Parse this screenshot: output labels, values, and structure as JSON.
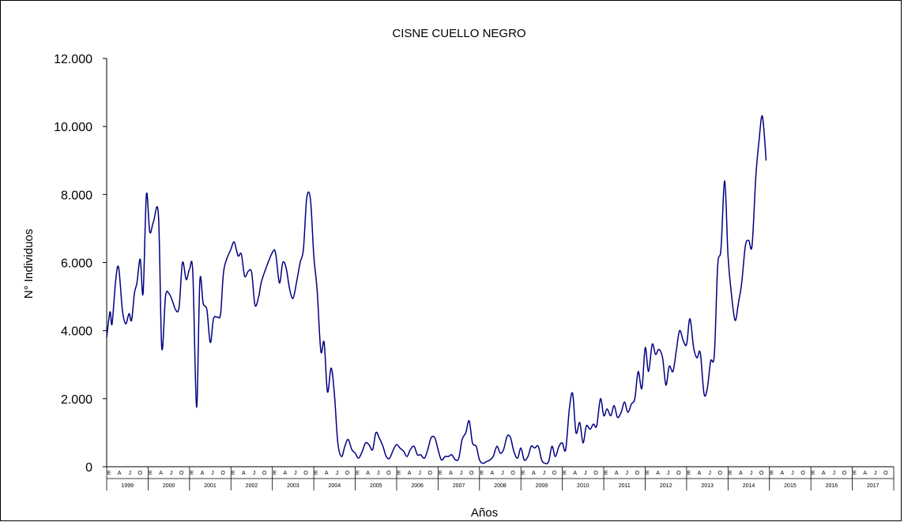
{
  "chart_data": {
    "type": "line",
    "title": "CISNE CUELLO NEGRO",
    "xlabel": "Años",
    "ylabel": "N° Individuos",
    "ylim": [
      0,
      12000
    ],
    "yticks": [
      0,
      2000,
      4000,
      6000,
      8000,
      10000,
      12000
    ],
    "ytick_labels": [
      "0",
      "2.000",
      "4.000",
      "6.000",
      "8.000",
      "10.000",
      "12.000"
    ],
    "month_tick_labels": [
      "E",
      "A",
      "J",
      "O"
    ],
    "years": [
      "1999",
      "2000",
      "2001",
      "2002",
      "2003",
      "2004",
      "2005",
      "2006",
      "2007",
      "2008",
      "2009",
      "2010",
      "2011",
      "2012",
      "2013",
      "2014",
      "2015",
      "2016",
      "2017"
    ],
    "line_color": "#000080",
    "grid": false,
    "series": [
      {
        "x_unit": "years since Jan 1999",
        "points": [
          [
            0.0,
            3800
          ],
          [
            0.08,
            4550
          ],
          [
            0.13,
            4200
          ],
          [
            0.22,
            5500
          ],
          [
            0.29,
            5850
          ],
          [
            0.38,
            4600
          ],
          [
            0.46,
            4200
          ],
          [
            0.54,
            4500
          ],
          [
            0.6,
            4300
          ],
          [
            0.67,
            5100
          ],
          [
            0.73,
            5400
          ],
          [
            0.81,
            6100
          ],
          [
            0.88,
            5100
          ],
          [
            0.96,
            8000
          ],
          [
            1.04,
            6900
          ],
          [
            1.13,
            7200
          ],
          [
            1.25,
            7400
          ],
          [
            1.33,
            3500
          ],
          [
            1.42,
            5000
          ],
          [
            1.5,
            5100
          ],
          [
            1.58,
            4900
          ],
          [
            1.67,
            4600
          ],
          [
            1.75,
            4700
          ],
          [
            1.83,
            6000
          ],
          [
            1.92,
            5500
          ],
          [
            2.0,
            5800
          ],
          [
            2.08,
            5700
          ],
          [
            2.17,
            1750
          ],
          [
            2.25,
            5450
          ],
          [
            2.33,
            4800
          ],
          [
            2.42,
            4600
          ],
          [
            2.5,
            3650
          ],
          [
            2.58,
            4350
          ],
          [
            2.67,
            4400
          ],
          [
            2.75,
            4500
          ],
          [
            2.83,
            5800
          ],
          [
            3.0,
            6400
          ],
          [
            3.08,
            6600
          ],
          [
            3.17,
            6200
          ],
          [
            3.25,
            6250
          ],
          [
            3.33,
            5600
          ],
          [
            3.42,
            5750
          ],
          [
            3.5,
            5700
          ],
          [
            3.58,
            4750
          ],
          [
            3.67,
            5000
          ],
          [
            3.75,
            5500
          ],
          [
            4.0,
            6300
          ],
          [
            4.08,
            6250
          ],
          [
            4.17,
            5400
          ],
          [
            4.25,
            6000
          ],
          [
            4.33,
            5850
          ],
          [
            4.42,
            5200
          ],
          [
            4.5,
            4950
          ],
          [
            4.58,
            5400
          ],
          [
            4.67,
            6000
          ],
          [
            4.75,
            6400
          ],
          [
            4.83,
            7900
          ],
          [
            4.92,
            7850
          ],
          [
            5.0,
            6200
          ],
          [
            5.08,
            5200
          ],
          [
            5.17,
            3400
          ],
          [
            5.25,
            3650
          ],
          [
            5.33,
            2200
          ],
          [
            5.42,
            2900
          ],
          [
            5.5,
            2100
          ],
          [
            5.58,
            700
          ],
          [
            5.67,
            300
          ],
          [
            5.75,
            600
          ],
          [
            5.83,
            800
          ],
          [
            5.92,
            500
          ],
          [
            6.0,
            400
          ],
          [
            6.08,
            250
          ],
          [
            6.17,
            450
          ],
          [
            6.25,
            700
          ],
          [
            6.33,
            650
          ],
          [
            6.42,
            500
          ],
          [
            6.5,
            1000
          ],
          [
            6.58,
            850
          ],
          [
            6.67,
            600
          ],
          [
            6.75,
            300
          ],
          [
            6.83,
            250
          ],
          [
            6.92,
            500
          ],
          [
            7.0,
            650
          ],
          [
            7.08,
            550
          ],
          [
            7.17,
            450
          ],
          [
            7.25,
            300
          ],
          [
            7.33,
            500
          ],
          [
            7.42,
            600
          ],
          [
            7.5,
            350
          ],
          [
            7.58,
            350
          ],
          [
            7.67,
            250
          ],
          [
            7.75,
            500
          ],
          [
            7.83,
            850
          ],
          [
            7.92,
            850
          ],
          [
            8.0,
            500
          ],
          [
            8.08,
            200
          ],
          [
            8.17,
            300
          ],
          [
            8.25,
            300
          ],
          [
            8.33,
            350
          ],
          [
            8.42,
            200
          ],
          [
            8.5,
            250
          ],
          [
            8.58,
            800
          ],
          [
            8.67,
            1000
          ],
          [
            8.75,
            1350
          ],
          [
            8.83,
            700
          ],
          [
            8.92,
            600
          ],
          [
            9.0,
            200
          ],
          [
            9.08,
            100
          ],
          [
            9.17,
            150
          ],
          [
            9.25,
            200
          ],
          [
            9.33,
            300
          ],
          [
            9.42,
            600
          ],
          [
            9.5,
            400
          ],
          [
            9.58,
            500
          ],
          [
            9.67,
            900
          ],
          [
            9.75,
            850
          ],
          [
            9.83,
            450
          ],
          [
            9.92,
            250
          ],
          [
            10.0,
            550
          ],
          [
            10.08,
            200
          ],
          [
            10.17,
            300
          ],
          [
            10.25,
            600
          ],
          [
            10.33,
            550
          ],
          [
            10.42,
            600
          ],
          [
            10.5,
            200
          ],
          [
            10.58,
            100
          ],
          [
            10.67,
            150
          ],
          [
            10.75,
            600
          ],
          [
            10.83,
            300
          ],
          [
            10.92,
            600
          ],
          [
            11.0,
            700
          ],
          [
            11.08,
            500
          ],
          [
            11.17,
            1700
          ],
          [
            11.25,
            2150
          ],
          [
            11.33,
            1000
          ],
          [
            11.42,
            1300
          ],
          [
            11.5,
            700
          ],
          [
            11.58,
            1200
          ],
          [
            11.67,
            1100
          ],
          [
            11.75,
            1250
          ],
          [
            11.83,
            1200
          ],
          [
            11.92,
            2000
          ],
          [
            12.0,
            1500
          ],
          [
            12.08,
            1700
          ],
          [
            12.17,
            1500
          ],
          [
            12.25,
            1800
          ],
          [
            12.33,
            1450
          ],
          [
            12.42,
            1600
          ],
          [
            12.5,
            1900
          ],
          [
            12.58,
            1600
          ],
          [
            12.67,
            1850
          ],
          [
            12.75,
            2000
          ],
          [
            12.83,
            2800
          ],
          [
            12.92,
            2300
          ],
          [
            13.0,
            3500
          ],
          [
            13.08,
            2800
          ],
          [
            13.17,
            3600
          ],
          [
            13.25,
            3300
          ],
          [
            13.33,
            3450
          ],
          [
            13.42,
            3200
          ],
          [
            13.5,
            2400
          ],
          [
            13.58,
            2950
          ],
          [
            13.67,
            2800
          ],
          [
            13.75,
            3400
          ],
          [
            13.83,
            4000
          ],
          [
            13.92,
            3700
          ],
          [
            14.0,
            3600
          ],
          [
            14.08,
            4350
          ],
          [
            14.17,
            3500
          ],
          [
            14.25,
            3200
          ],
          [
            14.33,
            3350
          ],
          [
            14.42,
            2150
          ],
          [
            14.5,
            2300
          ],
          [
            14.58,
            3100
          ],
          [
            14.67,
            3300
          ],
          [
            14.75,
            5900
          ],
          [
            14.83,
            6400
          ],
          [
            14.92,
            8400
          ],
          [
            15.0,
            6200
          ],
          [
            15.08,
            5100
          ],
          [
            15.17,
            4300
          ],
          [
            15.25,
            4800
          ],
          [
            15.33,
            5400
          ],
          [
            15.42,
            6500
          ],
          [
            15.5,
            6650
          ],
          [
            15.58,
            6500
          ],
          [
            15.67,
            8500
          ],
          [
            15.75,
            9600
          ],
          [
            15.83,
            10300
          ],
          [
            15.92,
            9000
          ]
        ]
      }
    ]
  }
}
